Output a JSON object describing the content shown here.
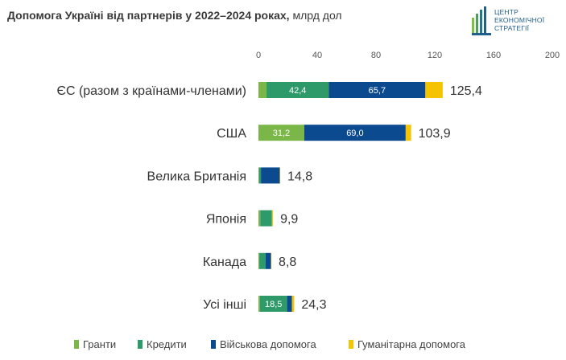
{
  "header": {
    "title_bold": "Допомога Україні від партнерів у 2022–2024 роках,",
    "title_unit": " млрд дол"
  },
  "logo": {
    "line1": "ЦЕНТР",
    "line2": "ЕКОНОМІЧНОЇ",
    "line3": "СТРАТЕГІЇ",
    "color": "#1f5f8b",
    "accent": "#7bc143"
  },
  "chart_data": {
    "type": "bar",
    "orientation": "horizontal",
    "stacked": true,
    "title": "Допомога Україні від партнерів у 2022–2024 роках, млрд дол",
    "xlim": [
      0,
      200
    ],
    "xticks": [
      0,
      40,
      80,
      120,
      160,
      200
    ],
    "grid": false,
    "legend_position": "bottom",
    "categories": [
      "ЄС (разом з країнами-членами)",
      "США",
      "Велика Британія",
      "Японія",
      "Канада",
      "Усі інші"
    ],
    "totals": [
      125.4,
      103.9,
      14.8,
      9.9,
      8.8,
      24.3
    ],
    "total_labels": [
      "125,4",
      "103,9",
      "14,8",
      "9,9",
      "8,8",
      "24,3"
    ],
    "series": [
      {
        "name": "Гранти",
        "color": "#7ab648",
        "values": [
          5.5,
          31.2,
          0.4,
          1.2,
          0.6,
          1.0
        ]
      },
      {
        "name": "Кредити",
        "color": "#2e9a6a",
        "values": [
          42.4,
          0.0,
          1.3,
          8.0,
          4.2,
          18.5
        ]
      },
      {
        "name": "Військова допомога",
        "color": "#0b4a8f",
        "values": [
          65.7,
          69.0,
          12.8,
          0.0,
          3.7,
          3.3
        ]
      },
      {
        "name": "Гуманітарна допомога",
        "color": "#f5c400",
        "values": [
          11.8,
          3.7,
          0.3,
          0.7,
          0.3,
          1.5
        ]
      }
    ],
    "segment_labels": [
      [
        "",
        "42,4",
        "65,7",
        ""
      ],
      [
        "31,2",
        "",
        "69,0",
        ""
      ],
      [
        "",
        "",
        "",
        ""
      ],
      [
        "",
        "",
        "",
        ""
      ],
      [
        "",
        "",
        "",
        ""
      ],
      [
        "",
        "18,5",
        "",
        ""
      ]
    ]
  }
}
